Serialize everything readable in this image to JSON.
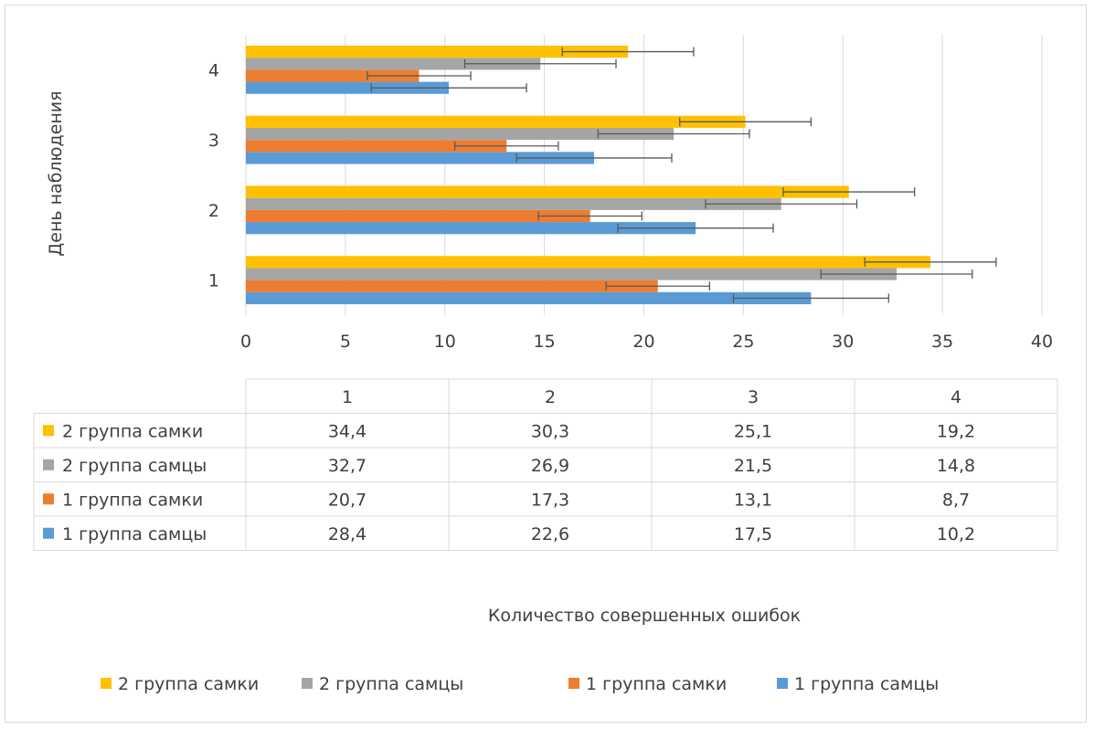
{
  "chart_data": {
    "type": "bar",
    "orientation": "horizontal",
    "title": "",
    "xlabel": "Количество совершенных ошибок",
    "ylabel": "День наблюдения",
    "categories": [
      "1",
      "2",
      "3",
      "4"
    ],
    "xlim": [
      0,
      40
    ],
    "xticks": [
      "0",
      "5",
      "10",
      "15",
      "20",
      "25",
      "30",
      "35",
      "40"
    ],
    "grid": "vertical",
    "legend_position": "bottom",
    "data_table": true,
    "series": [
      {
        "name": "1 группа самцы",
        "color": "#5b9bd5",
        "values": [
          28.4,
          22.6,
          17.5,
          10.2
        ],
        "labels": [
          "28,4",
          "22,6",
          "17,5",
          "10,2"
        ],
        "error": [
          3.9,
          3.9,
          3.9,
          3.9
        ]
      },
      {
        "name": "1 группа самки",
        "color": "#ed7d31",
        "values": [
          20.7,
          17.3,
          13.1,
          8.7
        ],
        "labels": [
          "20,7",
          "17,3",
          "13,1",
          "8,7"
        ],
        "error": [
          2.6,
          2.6,
          2.6,
          2.6
        ]
      },
      {
        "name": "2 группа самцы",
        "color": "#a5a5a5",
        "values": [
          32.7,
          26.9,
          21.5,
          14.8
        ],
        "labels": [
          "32,7",
          "26,9",
          "21,5",
          "14,8"
        ],
        "error": [
          3.8,
          3.8,
          3.8,
          3.8
        ]
      },
      {
        "name": "2 группа самки",
        "color": "#ffc000",
        "values": [
          34.4,
          30.3,
          25.1,
          19.2
        ],
        "labels": [
          "34,4",
          "30,3",
          "25,1",
          "19,2"
        ],
        "error": [
          3.3,
          3.3,
          3.3,
          3.3
        ]
      }
    ]
  }
}
